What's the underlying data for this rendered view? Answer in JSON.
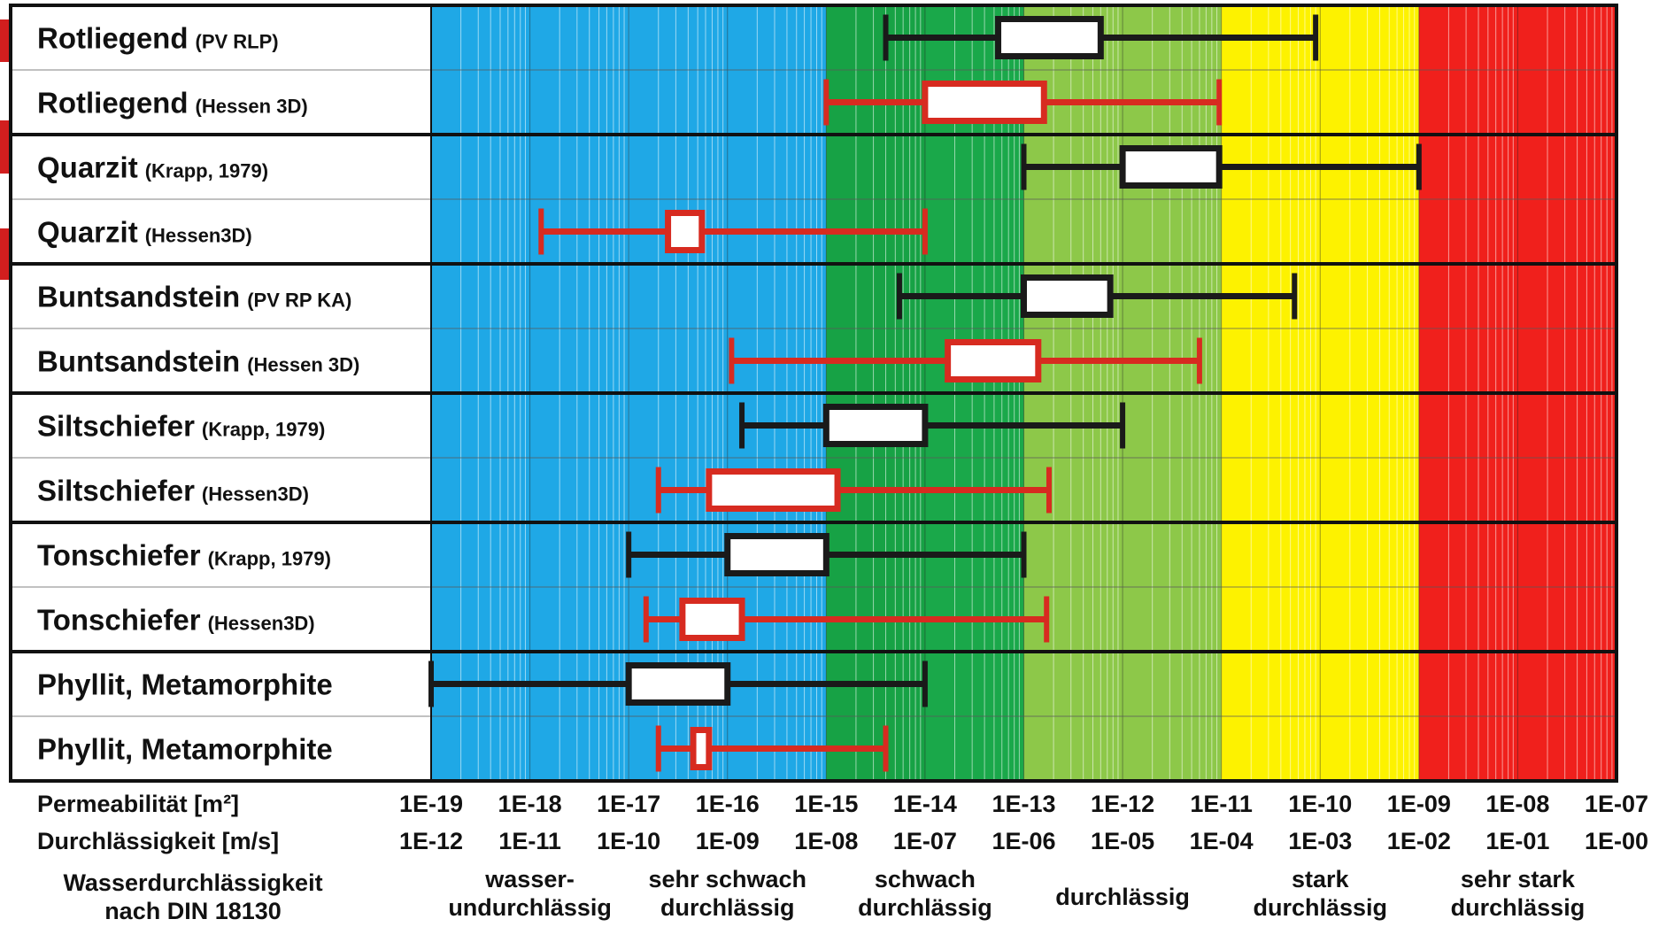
{
  "chart_data": {
    "type": "boxplot",
    "orientation": "horizontal",
    "x_scale": "log",
    "xlim": [
      "1E-19",
      "1E-07"
    ],
    "x_axis_rows": [
      {
        "label": "Permeabilität [m²]",
        "ticks": [
          "1E-19",
          "1E-18",
          "1E-17",
          "1E-16",
          "1E-15",
          "1E-14",
          "1E-13",
          "1E-12",
          "1E-11",
          "1E-10",
          "1E-09",
          "1E-08",
          "1E-07"
        ]
      },
      {
        "label": "Durchlässigkeit [m/s]",
        "ticks": [
          "1E-12",
          "1E-11",
          "1E-10",
          "1E-09",
          "1E-08",
          "1E-07",
          "1E-06",
          "1E-05",
          "1E-04",
          "1E-03",
          "1E-02",
          "1E-01",
          "1E-00"
        ]
      }
    ],
    "classification_title": "Wasserdurchlässigkeit nach DIN 18130",
    "classes": [
      {
        "label": [
          "wasser-",
          "undurchlässig"
        ],
        "from_exp": -19,
        "to_exp": -17,
        "color": "#1fa8e6"
      },
      {
        "label": [
          "sehr schwach",
          "durchlässig"
        ],
        "from_exp": -17,
        "to_exp": -15,
        "color": "#1fa8e6"
      },
      {
        "label": [
          "schwach",
          "durchlässig"
        ],
        "from_exp": -15,
        "to_exp": -13,
        "color": "#1aa84a"
      },
      {
        "label": [
          "durchlässig"
        ],
        "from_exp": -13,
        "to_exp": -11,
        "color": "#8dc849"
      },
      {
        "label": [
          "stark",
          "durchlässig"
        ],
        "from_exp": -11,
        "to_exp": -9,
        "color": "#fdf200"
      },
      {
        "label": [
          "sehr stark",
          "durchlässig"
        ],
        "from_exp": -9,
        "to_exp": -7,
        "color": "#f0201c"
      }
    ],
    "series_colors": {
      "black": "#1a1a1a",
      "red": "#d72b20"
    },
    "rows": [
      {
        "name": "Rotliegend",
        "source": "(PV RLP)",
        "color": "black",
        "whisker_low": 4e-15,
        "q1": 5.5e-14,
        "q3": 6e-13,
        "whisker_high": 9e-11
      },
      {
        "name": "Rotliegend",
        "source": "(Hessen 3D)",
        "color": "red",
        "whisker_low": 1e-15,
        "q1": 1e-14,
        "q3": 1.6e-13,
        "whisker_high": 9.5e-12
      },
      {
        "name": "Quarzit",
        "source": "(Krapp, 1979)",
        "color": "black",
        "whisker_low": 1e-13,
        "q1": 1e-12,
        "q3": 9.5e-12,
        "whisker_high": 1e-09
      },
      {
        "name": "Quarzit",
        "source": "(Hessen3D)",
        "color": "red",
        "whisker_low": 1.3e-18,
        "q1": 2.5e-17,
        "q3": 5.5e-17,
        "whisker_high": 1e-14
      },
      {
        "name": "Buntsandstein",
        "source": "(PV RP KA)",
        "color": "black",
        "whisker_low": 5.5e-15,
        "q1": 1e-13,
        "q3": 7.5e-13,
        "whisker_high": 5.5e-11
      },
      {
        "name": "Buntsandstein",
        "source": "(Hessen 3D)",
        "color": "red",
        "whisker_low": 1.1e-16,
        "q1": 1.7e-14,
        "q3": 1.4e-13,
        "whisker_high": 6e-12
      },
      {
        "name": "Siltschiefer",
        "source": "(Krapp, 1979)",
        "color": "black",
        "whisker_low": 1.4e-16,
        "q1": 1e-15,
        "q3": 1e-14,
        "whisker_high": 1e-12
      },
      {
        "name": "Siltschiefer",
        "source": "(Hessen3D)",
        "color": "red",
        "whisker_low": 2e-17,
        "q1": 6.5e-17,
        "q3": 1.3e-15,
        "whisker_high": 1.8e-13
      },
      {
        "name": "Tonschiefer",
        "source": "(Krapp, 1979)",
        "color": "black",
        "whisker_low": 1e-17,
        "q1": 1e-16,
        "q3": 1e-15,
        "whisker_high": 1e-13
      },
      {
        "name": "Tonschiefer",
        "source": "(Hessen3D)",
        "color": "red",
        "whisker_low": 1.5e-17,
        "q1": 3.5e-17,
        "q3": 1.4e-16,
        "whisker_high": 1.7e-13
      },
      {
        "name": "Phyllit, Metamorphite",
        "source": "",
        "color": "black",
        "whisker_low": 1e-19,
        "q1": 1e-17,
        "q3": 1e-16,
        "whisker_high": 1e-14
      },
      {
        "name": "Phyllit, Metamorphite",
        "source": "",
        "color": "red",
        "whisker_low": 2e-17,
        "q1": 4.5e-17,
        "q3": 6.5e-17,
        "whisker_high": 4e-15
      }
    ]
  }
}
